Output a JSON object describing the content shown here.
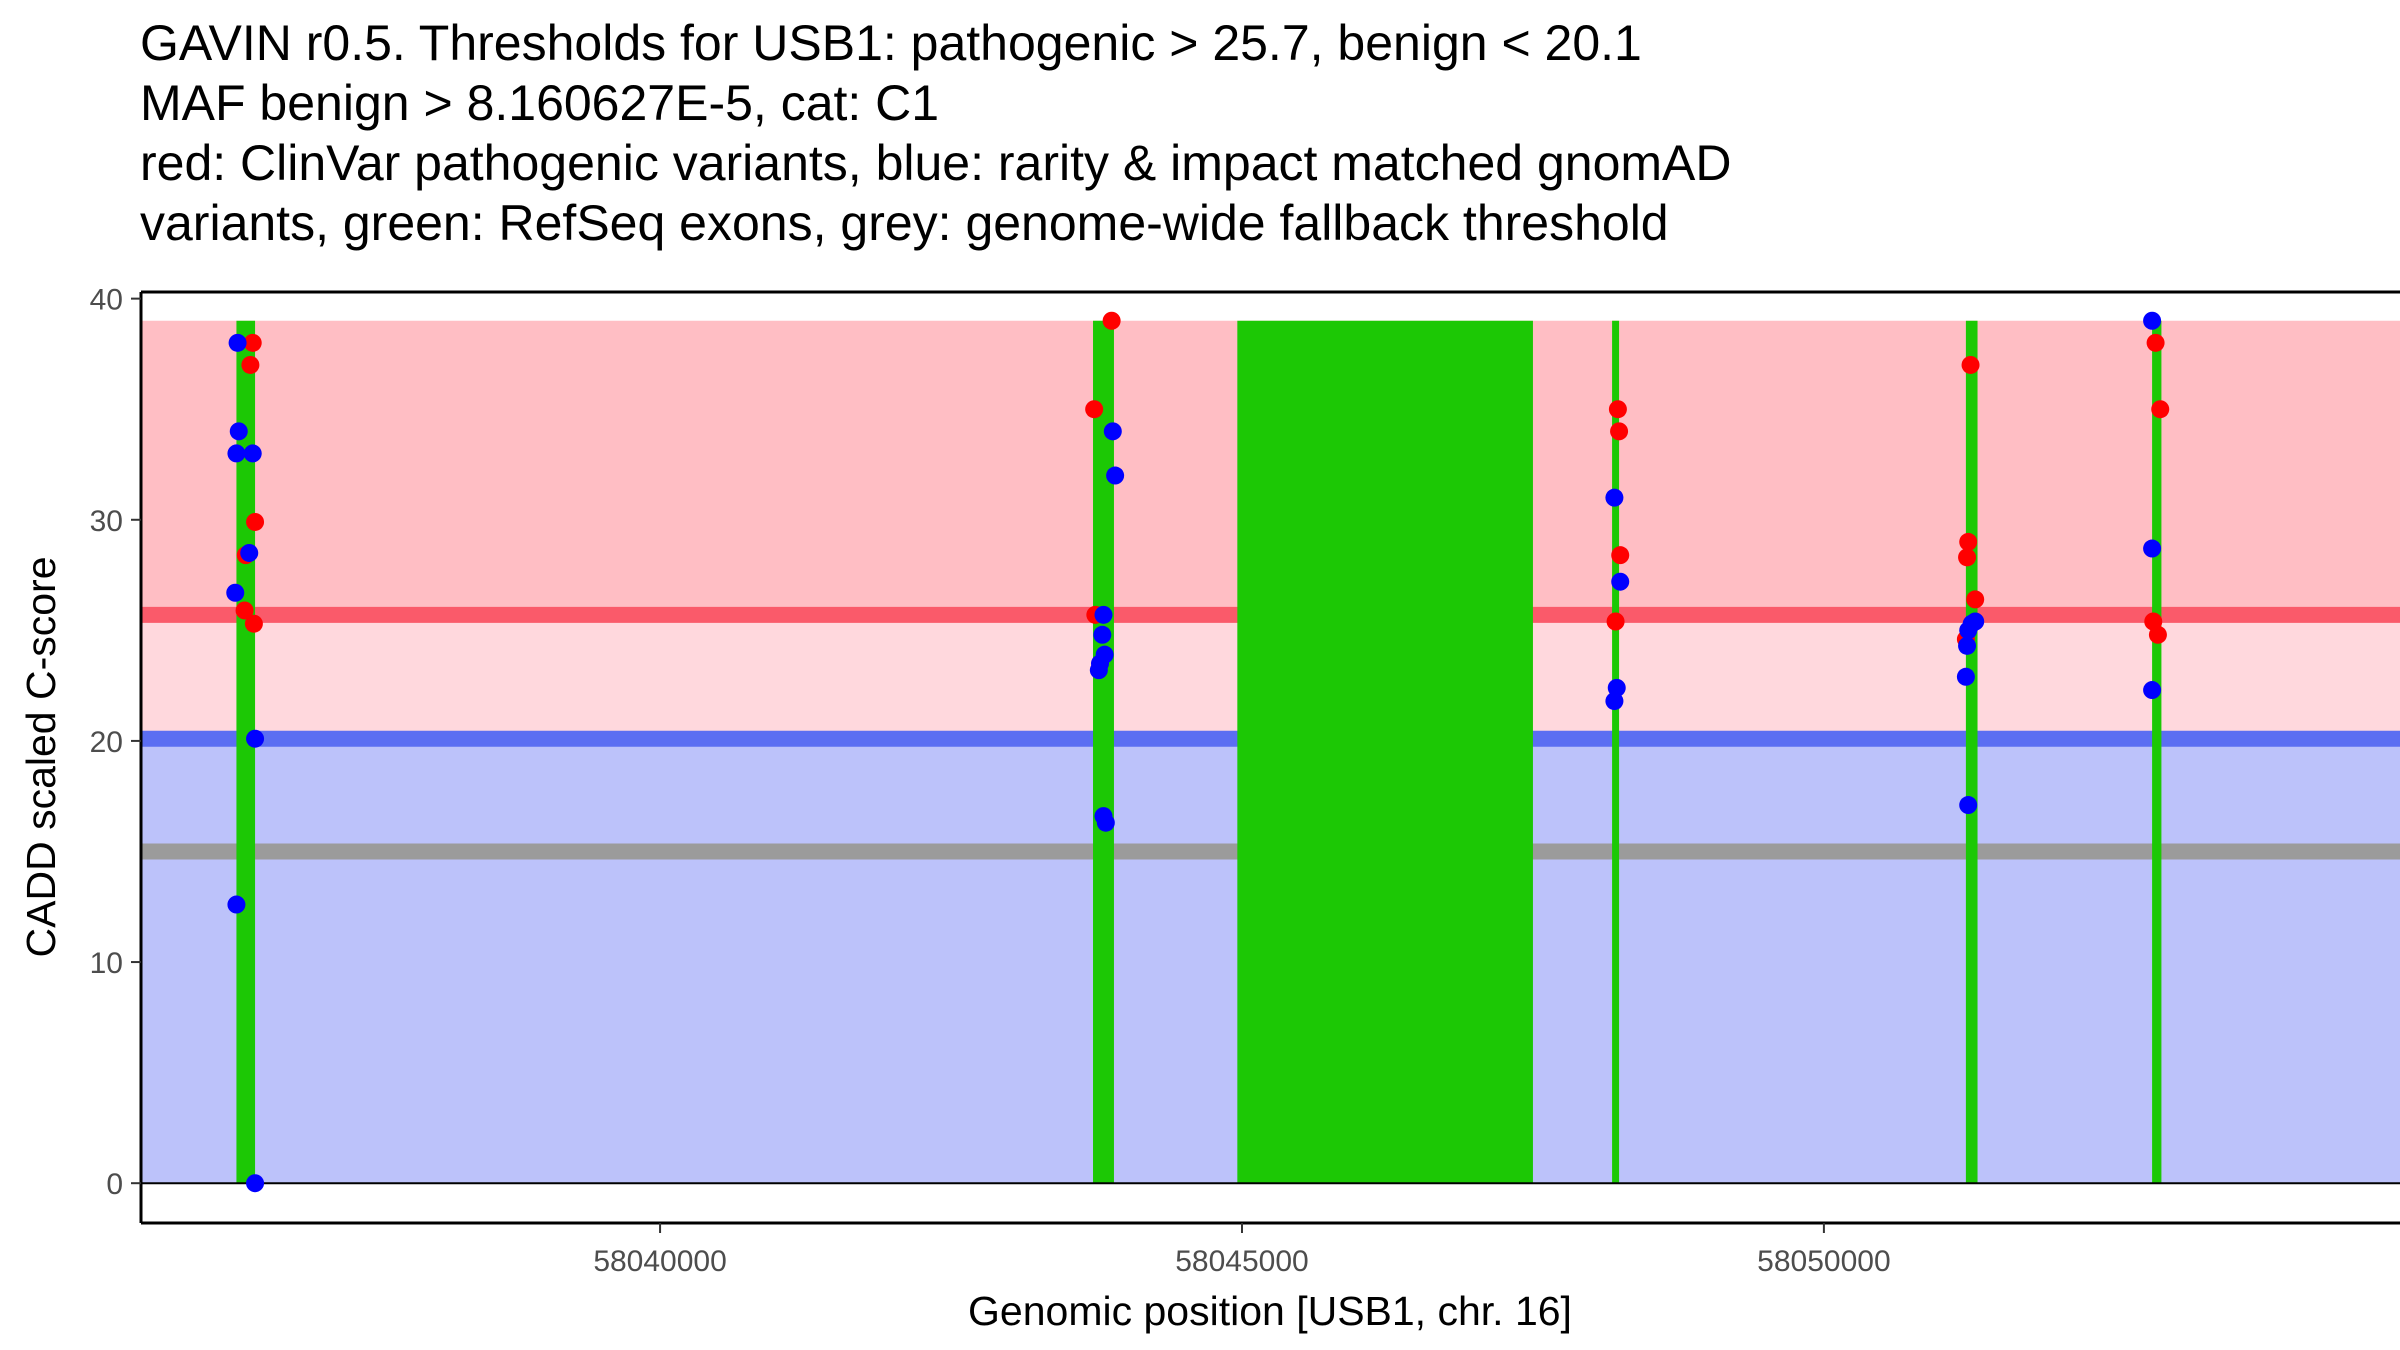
{
  "chart_data": {
    "type": "scatter",
    "title_lines": [
      "GAVIN r0.5. Thresholds for USB1: pathogenic > 25.7, benign < 20.1",
      "MAF benign > 8.160627E-5, cat: C1",
      "red: ClinVar pathogenic variants, blue: rarity & impact matched gnomAD",
      "variants, green: RefSeq exons, grey: genome-wide fallback threshold"
    ],
    "xlabel": "Genomic position [USB1, chr. 16]",
    "ylabel": "CADD scaled C-score",
    "xlim": [
      58035540,
      58054950
    ],
    "ylim": [
      -1.8,
      40.3
    ],
    "x_ticks": [
      58040000,
      58045000,
      58050000
    ],
    "x_tick_labels": [
      "58040000",
      "58045000",
      "58050000"
    ],
    "y_ticks": [
      0,
      10,
      20,
      30,
      40
    ],
    "y_tick_labels": [
      "0",
      "10",
      "20",
      "30",
      "40"
    ],
    "grid": false,
    "legend": "none",
    "data_x_range": [
      58035540,
      58054950
    ],
    "data_y_range": [
      0,
      39
    ],
    "thresholds": {
      "pathogenic": 25.7,
      "benign": 20.1,
      "fallback": 15.0
    },
    "colors": {
      "pathogenic_region": "#ffbec4",
      "intermediate_region": "#ffd8dd",
      "benign_region": "#bcc2fa",
      "pathogenic_line": "#fa5a6a",
      "benign_line": "#5b6ef2",
      "fallback_line": "#9b9b9b",
      "exon": "#1cc805",
      "clinvar_point": "#ff0000",
      "gnomad_point": "#0000ff"
    },
    "exons": [
      {
        "start": 58036360,
        "end": 58036520
      },
      {
        "start": 58043720,
        "end": 58043900
      },
      {
        "start": 58044960,
        "end": 58047500
      },
      {
        "start": 58048180,
        "end": 58048240
      },
      {
        "start": 58051220,
        "end": 58051320
      },
      {
        "start": 58052820,
        "end": 58052900
      }
    ],
    "series": [
      {
        "id": "clinvar",
        "points": [
          [
            58036500,
            38.0
          ],
          [
            58036480,
            37.0
          ],
          [
            58036520,
            29.9
          ],
          [
            58036440,
            28.4
          ],
          [
            58036430,
            25.9
          ],
          [
            58036510,
            25.3
          ],
          [
            58043730,
            35.0
          ],
          [
            58043880,
            39.0
          ],
          [
            58043740,
            25.7
          ],
          [
            58048230,
            35.0
          ],
          [
            58048240,
            34.0
          ],
          [
            58048250,
            28.4
          ],
          [
            58048210,
            25.4
          ],
          [
            58051260,
            37.0
          ],
          [
            58051240,
            29.0
          ],
          [
            58051230,
            28.3
          ],
          [
            58051300,
            26.4
          ],
          [
            58051220,
            24.6
          ],
          [
            58052850,
            38.0
          ],
          [
            58052890,
            35.0
          ],
          [
            58052830,
            25.4
          ],
          [
            58052870,
            24.8
          ]
        ]
      },
      {
        "id": "gnomad",
        "points": [
          [
            58036370,
            38.0
          ],
          [
            58036380,
            34.0
          ],
          [
            58036360,
            33.0
          ],
          [
            58036500,
            33.0
          ],
          [
            58036470,
            28.5
          ],
          [
            58036350,
            26.7
          ],
          [
            58036520,
            20.1
          ],
          [
            58036360,
            12.6
          ],
          [
            58036520,
            0.0
          ],
          [
            58043890,
            34.0
          ],
          [
            58043910,
            32.0
          ],
          [
            58043810,
            25.7
          ],
          [
            58043800,
            24.8
          ],
          [
            58043820,
            23.9
          ],
          [
            58043780,
            23.5
          ],
          [
            58043770,
            23.2
          ],
          [
            58043810,
            16.6
          ],
          [
            58043830,
            16.3
          ],
          [
            58048200,
            31.0
          ],
          [
            58048250,
            27.2
          ],
          [
            58048220,
            22.4
          ],
          [
            58048200,
            21.8
          ],
          [
            58051270,
            25.3
          ],
          [
            58051300,
            25.4
          ],
          [
            58051240,
            25.0
          ],
          [
            58051230,
            24.3
          ],
          [
            58051220,
            22.9
          ],
          [
            58051240,
            17.1
          ],
          [
            58052820,
            39.0
          ],
          [
            58052820,
            28.7
          ],
          [
            58052820,
            22.3
          ]
        ]
      }
    ]
  }
}
